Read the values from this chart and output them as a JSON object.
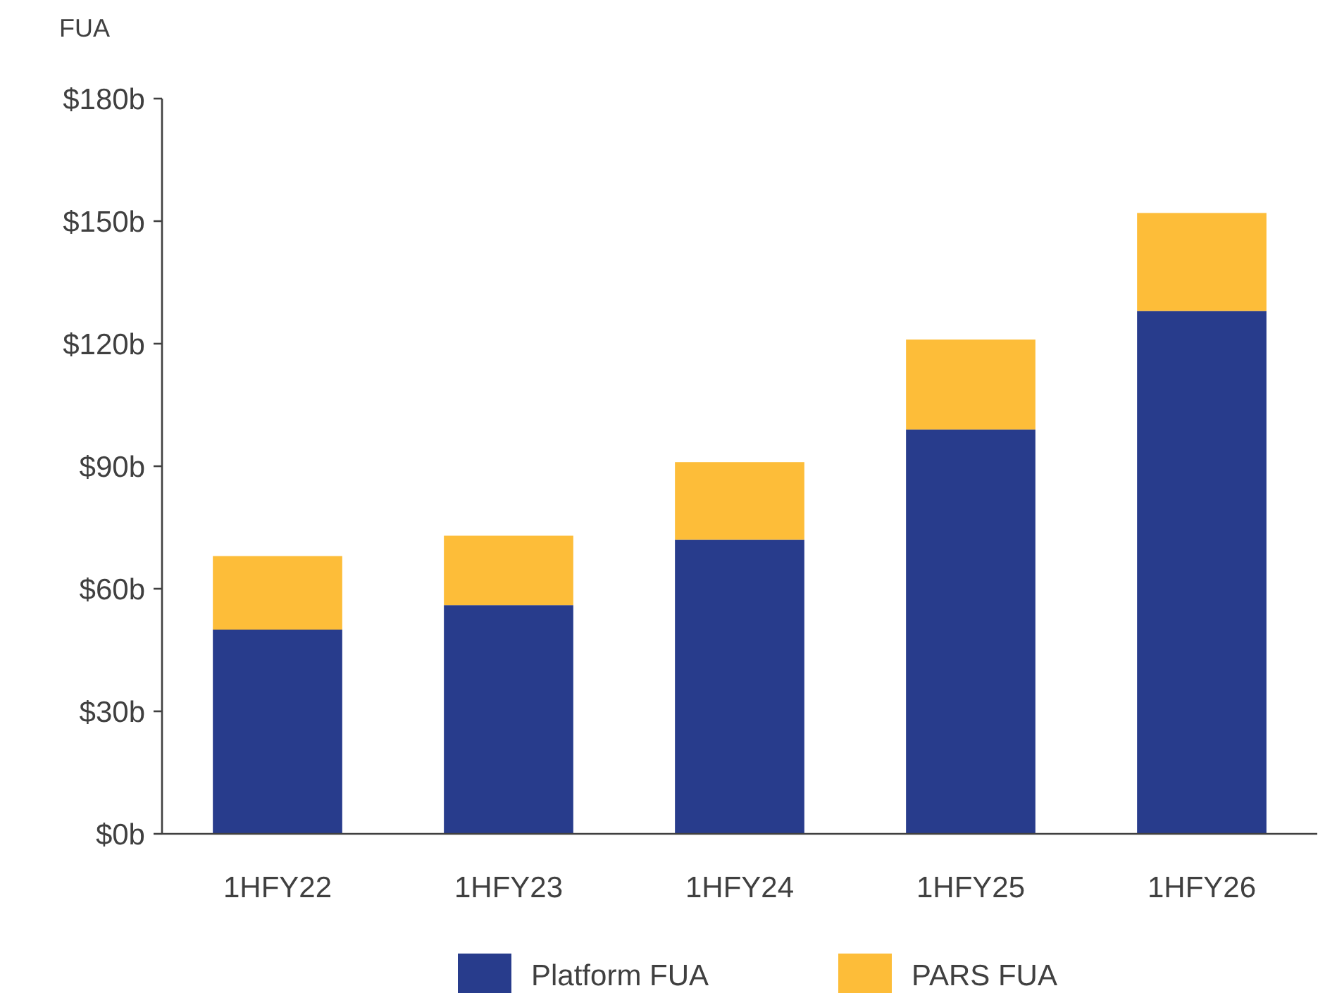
{
  "chart_data": {
    "type": "bar",
    "stacked": true,
    "ylabel": "FUA",
    "categories": [
      "1HFY22",
      "1HFY23",
      "1HFY24",
      "1HFY25",
      "1HFY26"
    ],
    "series": [
      {
        "name": "Platform FUA",
        "color": "#283c8c",
        "values": [
          50,
          56,
          72,
          99,
          128
        ]
      },
      {
        "name": "PARS FUA",
        "color": "#fdbd39",
        "values": [
          18,
          17,
          19,
          22,
          24
        ]
      }
    ],
    "ylim": [
      0,
      180
    ],
    "yticks": [
      {
        "value": 0,
        "label": "$0b"
      },
      {
        "value": 30,
        "label": "$30b"
      },
      {
        "value": 60,
        "label": "$60b"
      },
      {
        "value": 90,
        "label": "$90b"
      },
      {
        "value": 120,
        "label": "$120b"
      },
      {
        "value": 150,
        "label": "$150b"
      },
      {
        "value": 180,
        "label": "$180b"
      }
    ],
    "grid": false,
    "legend": "bottom"
  }
}
